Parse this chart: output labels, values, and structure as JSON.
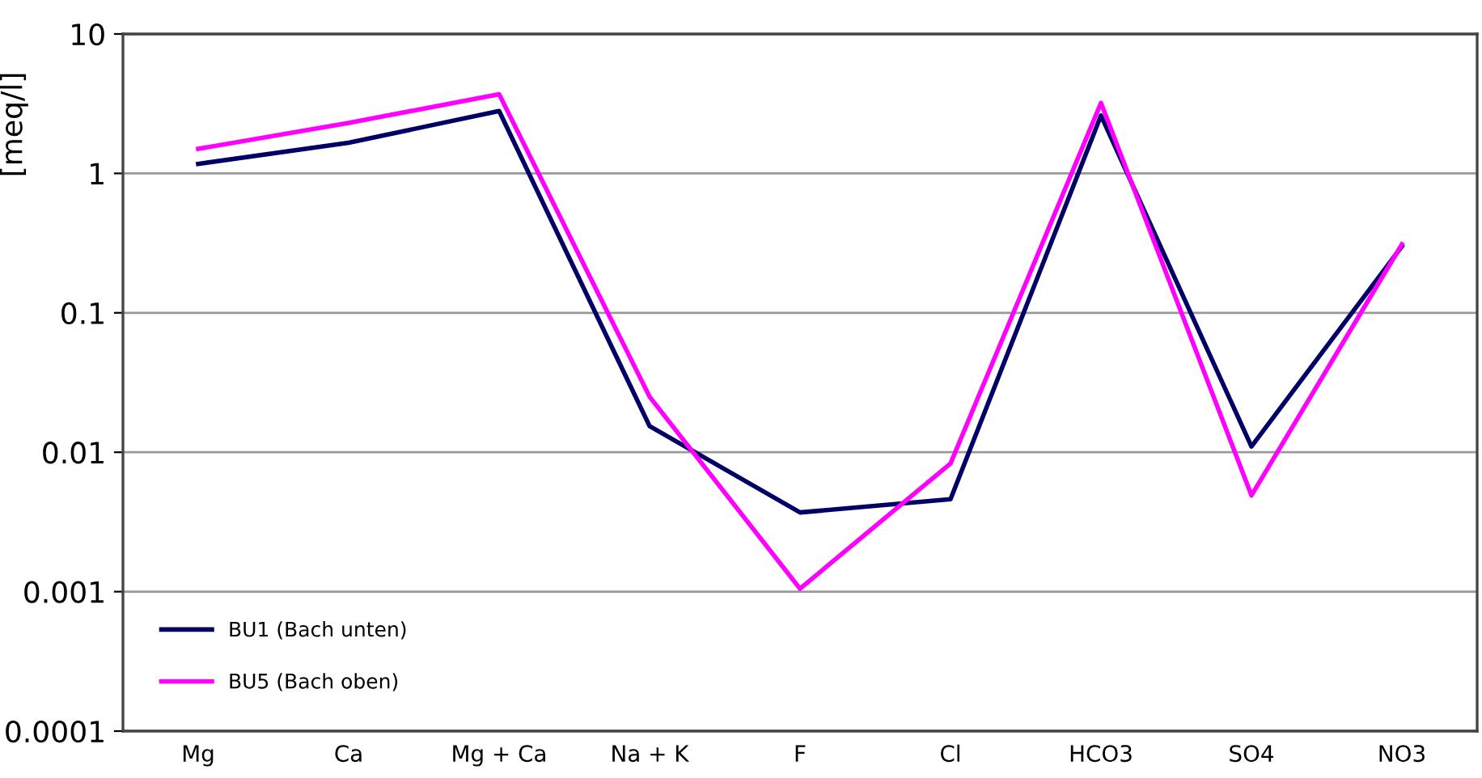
{
  "chart_data": {
    "type": "line",
    "ylabel": "[meq/l]",
    "log": true,
    "categories": [
      "Mg",
      "Ca",
      "Mg + Ca",
      "Na + K",
      "F",
      "Cl",
      "HCO3",
      "SO4",
      "NO3"
    ],
    "series": [
      {
        "name": "BU1 (Bach unten)",
        "color": "#000066",
        "values": [
          1.17,
          1.66,
          2.8,
          0.0154,
          0.0037,
          0.0046,
          2.6,
          0.011,
          0.3
        ]
      },
      {
        "name": "BU5 (Bach oben)",
        "color": "#ff00ff",
        "values": [
          1.5,
          2.3,
          3.7,
          0.025,
          0.00105,
          0.0083,
          3.2,
          0.0049,
          0.31
        ]
      }
    ],
    "ylim": [
      0.0001,
      10
    ],
    "yticks": [
      {
        "value": 0.0001,
        "label": "0.0001"
      },
      {
        "value": 0.001,
        "label": "0.001"
      },
      {
        "value": 0.01,
        "label": "0.01"
      },
      {
        "value": 0.1,
        "label": "0.1"
      },
      1,
      10
    ],
    "grid": "y",
    "legend": "bottom left",
    "marker": "none",
    "line_style": "solid"
  }
}
